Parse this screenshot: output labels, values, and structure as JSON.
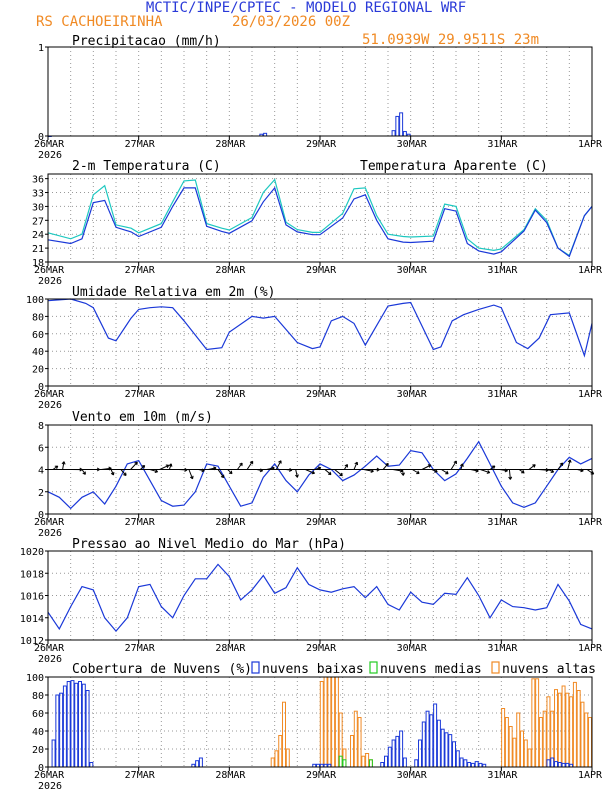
{
  "header": {
    "title": "MCTIC/INPE/CPTEC - MODELO REGIONAL WRF",
    "location": "RS CACHOEIRINHA",
    "run_time": "26/03/2026 00Z",
    "coords": "51.0939W 29.9511S 23m"
  },
  "colors": {
    "title_blue": "#2a3ad8",
    "orange": "#f08a24",
    "cyan": "#1dc8c0",
    "blue_line": "#1a38d8",
    "green": "#22cc22",
    "black": "#000000"
  },
  "x_axis": {
    "labels": [
      "26MAR",
      "27MAR",
      "28MAR",
      "29MAR",
      "30MAR",
      "31MAR",
      "1APR"
    ],
    "year": "2026",
    "hours": 144
  },
  "chart_data": [
    {
      "id": "precip",
      "type": "bar",
      "title": "Precipitacao (mm/h)",
      "ylim": [
        0,
        1
      ],
      "yticks": [
        0,
        1
      ],
      "series": [
        {
          "name": "Precipitacao",
          "color": "#1a38d8",
          "bars": [
            [
              0,
              0.0
            ],
            [
              56,
              0.02
            ],
            [
              57,
              0.03
            ],
            [
              91,
              0.06
            ],
            [
              92,
              0.22
            ],
            [
              93,
              0.26
            ],
            [
              94,
              0.05
            ],
            [
              95,
              0.02
            ]
          ]
        }
      ]
    },
    {
      "id": "temp",
      "type": "line",
      "title": "2-m Temperatura (C)",
      "legend": "Temperatura Aparente (C)",
      "ylim": [
        18,
        37
      ],
      "yticks": [
        18,
        21,
        24,
        27,
        30,
        33,
        36
      ],
      "series": [
        {
          "name": "Temperatura Aparente (C)",
          "color": "#1dc8c0",
          "x": [
            0,
            6,
            9,
            12,
            15,
            18,
            22,
            24,
            30,
            33,
            36,
            39,
            42,
            46,
            48,
            54,
            57,
            60,
            63,
            66,
            70,
            72,
            78,
            81,
            84,
            87,
            90,
            94,
            96,
            102,
            105,
            108,
            111,
            114,
            118,
            120,
            126,
            129,
            132,
            135,
            138,
            142,
            144
          ],
          "y": [
            24.3,
            23,
            24,
            32.5,
            34.5,
            26,
            25.3,
            24.3,
            26.3,
            31,
            35.5,
            35.7,
            26.3,
            25.3,
            24.9,
            27.6,
            33,
            35.8,
            26.6,
            25,
            24.4,
            24.4,
            28.5,
            33.8,
            34,
            28,
            24,
            23.5,
            23.4,
            23.6,
            30.5,
            30,
            23,
            21,
            20.5,
            20.8,
            25,
            29.5,
            27,
            21,
            19.4,
            28,
            30
          ]
        },
        {
          "name": "2-m Temperatura (C)",
          "color": "#1a38d8",
          "x": [
            0,
            6,
            9,
            12,
            15,
            18,
            22,
            24,
            30,
            33,
            36,
            39,
            42,
            46,
            48,
            54,
            57,
            60,
            63,
            66,
            70,
            72,
            78,
            81,
            84,
            87,
            90,
            94,
            96,
            102,
            105,
            108,
            111,
            114,
            118,
            120,
            126,
            129,
            132,
            135,
            138,
            142,
            144
          ],
          "y": [
            22.8,
            22,
            23,
            30.8,
            31.3,
            25.5,
            24.5,
            23.5,
            25.5,
            30,
            34,
            34,
            25.7,
            24.6,
            24.2,
            26.9,
            31,
            34,
            26,
            24.5,
            23.9,
            23.9,
            27.5,
            31.6,
            32.5,
            27,
            23,
            22.3,
            22.2,
            22.5,
            29.5,
            29,
            22,
            20.4,
            19.7,
            20.2,
            24.7,
            29.2,
            26.5,
            21,
            19.2,
            28,
            30
          ]
        }
      ]
    },
    {
      "id": "humidity",
      "type": "line",
      "title": "Umidade Relativa em 2m (%)",
      "ylim": [
        0,
        100
      ],
      "yticks": [
        0,
        20,
        40,
        60,
        80,
        100
      ],
      "series": [
        {
          "name": "Umidade Relativa",
          "color": "#1a38d8",
          "x": [
            0,
            6,
            10,
            12,
            16,
            18,
            22,
            24,
            27,
            30,
            33,
            36,
            42,
            46,
            48,
            54,
            57,
            60,
            66,
            70,
            72,
            75,
            78,
            81,
            84,
            90,
            94,
            96,
            102,
            104,
            107,
            110,
            114,
            118,
            120,
            124,
            127,
            130,
            133,
            138,
            142,
            144
          ],
          "y": [
            98,
            100,
            95,
            90,
            55,
            52,
            78,
            88,
            90,
            91,
            90,
            75,
            42,
            44,
            62,
            80,
            78,
            80,
            50,
            43,
            45,
            75,
            80,
            72,
            47,
            92,
            95,
            96,
            42,
            45,
            75,
            82,
            88,
            93,
            90,
            50,
            43,
            55,
            82,
            84,
            35,
            72
          ]
        }
      ]
    },
    {
      "id": "wind",
      "type": "line",
      "title": "Vento em 10m (m/s)",
      "ylim": [
        0,
        8
      ],
      "yticks": [
        0,
        2,
        4,
        6,
        8
      ],
      "series": [
        {
          "name": "Vento em 10m",
          "color": "#1a38d8",
          "x": [
            0,
            3,
            6,
            9,
            12,
            15,
            18,
            21,
            24,
            27,
            30,
            33,
            36,
            39,
            42,
            45,
            48,
            51,
            54,
            57,
            60,
            63,
            66,
            69,
            72,
            75,
            78,
            81,
            84,
            87,
            90,
            93,
            96,
            99,
            102,
            105,
            108,
            111,
            114,
            117,
            120,
            123,
            126,
            129,
            132,
            135,
            138,
            141,
            144
          ],
          "y": [
            2,
            1.5,
            0.5,
            1.5,
            2,
            0.9,
            2.5,
            4.5,
            4.8,
            3,
            1.2,
            0.7,
            0.8,
            2,
            4.5,
            4.3,
            2.5,
            0.7,
            1,
            3.3,
            4.5,
            3,
            2,
            3.5,
            4.5,
            4,
            3,
            3.5,
            4.3,
            5.2,
            4.3,
            4.4,
            5.7,
            5.5,
            4,
            3,
            3.6,
            5,
            6.5,
            4.5,
            2.5,
            1,
            0.6,
            1,
            2.5,
            4,
            5.1,
            4.5,
            5
          ]
        }
      ],
      "vectors": {
        "count": 56,
        "y": 4,
        "color": "#000000"
      }
    },
    {
      "id": "pressure",
      "type": "line",
      "title": "Pressao ao Nivel Medio do Mar (hPa)",
      "ylim": [
        1012,
        1020
      ],
      "yticks": [
        1012,
        1014,
        1016,
        1018,
        1020
      ],
      "series": [
        {
          "name": "Pressao",
          "color": "#1a38d8",
          "x": [
            0,
            3,
            6,
            9,
            12,
            15,
            18,
            21,
            24,
            27,
            30,
            33,
            36,
            39,
            42,
            45,
            48,
            51,
            54,
            57,
            60,
            63,
            66,
            69,
            72,
            75,
            78,
            81,
            84,
            87,
            90,
            93,
            96,
            99,
            102,
            105,
            108,
            111,
            114,
            117,
            120,
            123,
            126,
            129,
            132,
            135,
            138,
            141,
            144
          ],
          "y": [
            1014.5,
            1013,
            1015,
            1016.8,
            1016.5,
            1014,
            1012.8,
            1014,
            1016.8,
            1017,
            1015,
            1014,
            1016,
            1017.5,
            1017.5,
            1018.8,
            1017.7,
            1015.6,
            1016.5,
            1017.8,
            1016.2,
            1016.7,
            1018.5,
            1017,
            1016.5,
            1016.3,
            1016.6,
            1016.8,
            1015.8,
            1016.8,
            1015.2,
            1014.7,
            1016.3,
            1015.4,
            1015.2,
            1016.2,
            1016.1,
            1017.6,
            1016,
            1014,
            1015.6,
            1015,
            1014.9,
            1014.7,
            1014.9,
            1017,
            1015.5,
            1013.4,
            1013
          ]
        }
      ]
    },
    {
      "id": "clouds",
      "type": "bar",
      "title": "Cobertura de Nuvens (%)",
      "legend": [
        "nuvens baixas",
        "nuvens medias",
        "nuvens altas"
      ],
      "ylim": [
        0,
        100
      ],
      "yticks": [
        0,
        20,
        40,
        60,
        80,
        100
      ],
      "series": [
        {
          "name": "nuvens altas",
          "color": "#f08a24",
          "bars": [
            [
              59,
              10
            ],
            [
              60,
              18
            ],
            [
              61,
              35
            ],
            [
              62,
              72
            ],
            [
              63,
              20
            ],
            [
              72,
              95
            ],
            [
              73,
              100
            ],
            [
              74,
              100
            ],
            [
              75,
              100
            ],
            [
              76,
              100
            ],
            [
              77,
              60
            ],
            [
              78,
              20
            ],
            [
              80,
              35
            ],
            [
              81,
              62
            ],
            [
              82,
              55
            ],
            [
              83,
              12
            ],
            [
              84,
              15
            ],
            [
              85,
              8
            ],
            [
              120,
              65
            ],
            [
              121,
              55
            ],
            [
              122,
              45
            ],
            [
              123,
              32
            ],
            [
              124,
              60
            ],
            [
              125,
              40
            ],
            [
              126,
              30
            ],
            [
              127,
              20
            ],
            [
              128,
              98
            ],
            [
              129,
              98
            ],
            [
              130,
              55
            ],
            [
              131,
              62
            ],
            [
              132,
              78
            ],
            [
              133,
              62
            ],
            [
              134,
              86
            ],
            [
              135,
              82
            ],
            [
              136,
              90
            ],
            [
              137,
              82
            ],
            [
              138,
              78
            ],
            [
              139,
              94
            ],
            [
              140,
              85
            ],
            [
              141,
              72
            ],
            [
              142,
              60
            ],
            [
              143,
              55
            ]
          ]
        },
        {
          "name": "nuvens medias",
          "color": "#22cc22",
          "bars": [
            [
              77,
              12
            ],
            [
              78,
              8
            ],
            [
              85,
              8
            ]
          ]
        },
        {
          "name": "nuvens baixas",
          "color": "#1a38d8",
          "bars": [
            [
              1,
              30
            ],
            [
              2,
              80
            ],
            [
              3,
              82
            ],
            [
              4,
              90
            ],
            [
              5,
              95
            ],
            [
              6,
              96
            ],
            [
              7,
              93
            ],
            [
              8,
              95
            ],
            [
              9,
              92
            ],
            [
              10,
              85
            ],
            [
              11,
              5
            ],
            [
              38,
              3
            ],
            [
              39,
              7
            ],
            [
              40,
              10
            ],
            [
              70,
              3
            ],
            [
              71,
              3
            ],
            [
              72,
              3
            ],
            [
              73,
              3
            ],
            [
              74,
              3
            ],
            [
              88,
              5
            ],
            [
              89,
              12
            ],
            [
              90,
              22
            ],
            [
              91,
              30
            ],
            [
              92,
              34
            ],
            [
              93,
              40
            ],
            [
              94,
              10
            ],
            [
              97,
              8
            ],
            [
              98,
              30
            ],
            [
              99,
              50
            ],
            [
              100,
              62
            ],
            [
              101,
              58
            ],
            [
              102,
              70
            ],
            [
              103,
              52
            ],
            [
              104,
              42
            ],
            [
              105,
              38
            ],
            [
              106,
              36
            ],
            [
              107,
              28
            ],
            [
              108,
              18
            ],
            [
              109,
              10
            ],
            [
              110,
              8
            ],
            [
              111,
              5
            ],
            [
              112,
              4
            ],
            [
              113,
              6
            ],
            [
              114,
              4
            ],
            [
              115,
              3
            ],
            [
              132,
              8
            ],
            [
              133,
              10
            ],
            [
              134,
              6
            ],
            [
              135,
              5
            ],
            [
              136,
              4
            ],
            [
              137,
              4
            ],
            [
              138,
              3
            ]
          ]
        }
      ]
    }
  ]
}
